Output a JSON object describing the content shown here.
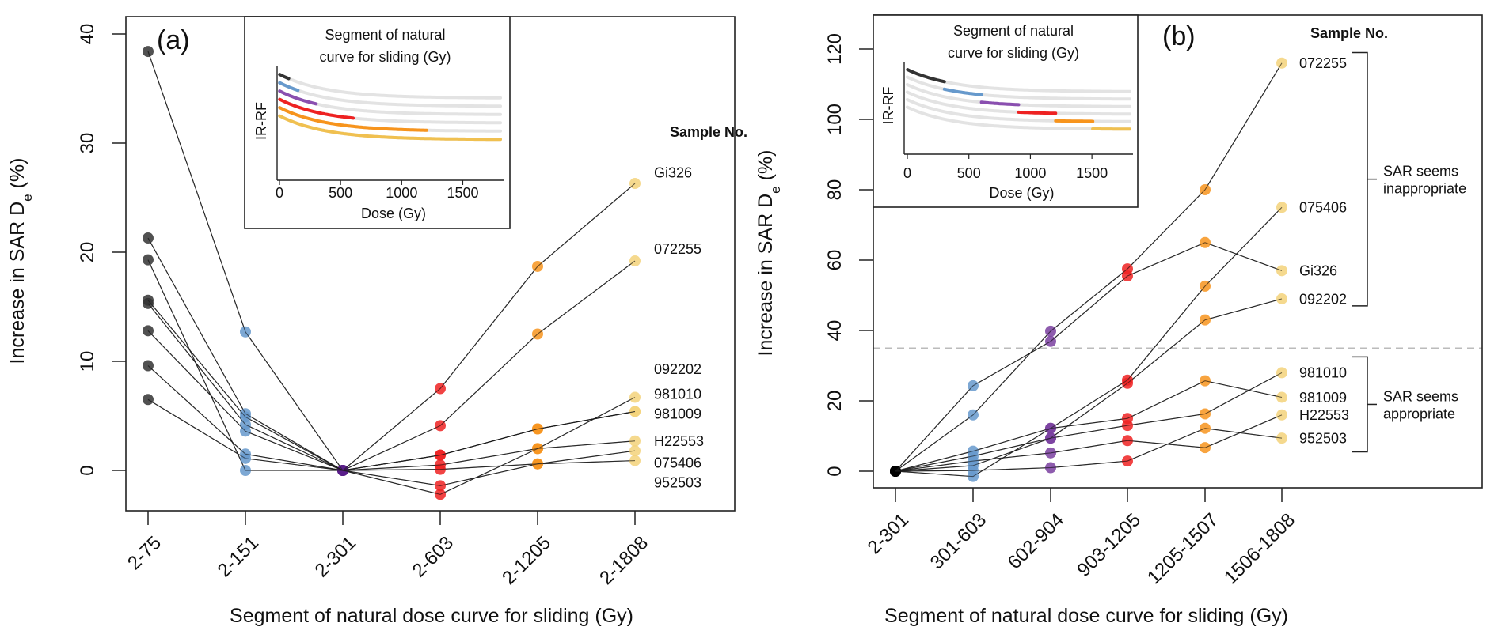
{
  "chart_data": [
    {
      "type": "line",
      "panel_label": "(a)",
      "xlabel": "Segment of natural dose curve for sliding (Gy)",
      "ylabel": "Increase in SAR D_e (%)",
      "ylabel_main": "Increase in SAR D",
      "ylabel_sub": "e",
      "ylabel_tail": " (%)",
      "categories": [
        "2-75",
        "2-151",
        "2-301",
        "2-603",
        "2-1205",
        "2-1808"
      ],
      "category_colors": [
        "#333333",
        "#6699cc",
        "#5b1f8a",
        "#ee2222",
        "#f7941d",
        "#f3d27a"
      ],
      "ylim": [
        -4,
        41
      ],
      "yticks": [
        0,
        10,
        20,
        30,
        40
      ],
      "grid": false,
      "legend_title": "Sample No.",
      "series": [
        {
          "name": "Gi326",
          "values": [
            21.3,
            5.2,
            0,
            7.5,
            18.7,
            26.3
          ]
        },
        {
          "name": "072255",
          "values": [
            38.4,
            12.7,
            0,
            4.1,
            12.5,
            19.2
          ]
        },
        {
          "name": "092202",
          "values": [
            15.6,
            4.9,
            0,
            1.4,
            3.8,
            5.4
          ]
        },
        {
          "name": "981010",
          "values": [
            19.3,
            0.0,
            0,
            -2.2,
            2.0,
            6.7
          ]
        },
        {
          "name": "981009",
          "values": [
            15.3,
            4.2,
            0,
            1.4,
            3.8,
            5.4
          ]
        },
        {
          "name": "H22553",
          "values": [
            12.8,
            3.6,
            0,
            0.5,
            2.0,
            2.7
          ]
        },
        {
          "name": "075406",
          "values": [
            9.6,
            1.5,
            0,
            -1.4,
            0.6,
            1.8
          ]
        },
        {
          "name": "952503",
          "values": [
            6.5,
            1.1,
            0,
            0.1,
            0.6,
            0.9
          ]
        }
      ],
      "labels": [
        {
          "text": "Gi326",
          "at": 27.3
        },
        {
          "text": "072255",
          "at": 20.3
        },
        {
          "text": "092202",
          "at": 9.3
        },
        {
          "text": "981010",
          "at": 7.0
        },
        {
          "text": "981009",
          "at": 5.2
        },
        {
          "text": "H22553",
          "at": 2.7
        },
        {
          "text": "075406",
          "at": 0.7
        },
        {
          "text": "952503",
          "at": -1.1
        }
      ],
      "inset": {
        "title_line1": "Segment of natural",
        "title_line2": "curve for sliding (Gy)",
        "ylabel": "IR-RF",
        "xlabel": "Dose (Gy)",
        "xticks": [
          0,
          500,
          1000,
          1500
        ],
        "xlim": [
          0,
          1808
        ],
        "segments": [
          {
            "from": 2,
            "to": 75,
            "color": "#333333"
          },
          {
            "from": 2,
            "to": 151,
            "color": "#6699cc"
          },
          {
            "from": 2,
            "to": 301,
            "color": "#8a4fb0"
          },
          {
            "from": 2,
            "to": 603,
            "color": "#ee2222"
          },
          {
            "from": 2,
            "to": 1205,
            "color": "#f7941d"
          },
          {
            "from": 2,
            "to": 1808,
            "color": "#f0c050"
          }
        ]
      }
    },
    {
      "type": "line",
      "panel_label": "(b)",
      "xlabel": "Segment of natural dose curve for sliding (Gy)",
      "ylabel": "Increase in SAR D_e (%)",
      "ylabel_main": "Increase in SAR D",
      "ylabel_sub": "e",
      "ylabel_tail": " (%)",
      "categories": [
        "2-301",
        "301-603",
        "602-904",
        "903-1205",
        "1205-1507",
        "1506-1808"
      ],
      "category_colors": [
        "#000000",
        "#6699cc",
        "#7a3fa0",
        "#ee2222",
        "#f7941d",
        "#f3d27a"
      ],
      "ylim": [
        -6,
        132
      ],
      "yticks": [
        0,
        20,
        40,
        60,
        80,
        100,
        120
      ],
      "grid": false,
      "threshold_line": 35,
      "legend_title": "Sample No.",
      "series": [
        {
          "name": "072255",
          "values": [
            0,
            16.0,
            39.8,
            57.5,
            80.0,
            116.0
          ]
        },
        {
          "name": "075406",
          "values": [
            0,
            -1.5,
            12.2,
            25.9,
            52.6,
            75.0
          ]
        },
        {
          "name": "Gi326",
          "values": [
            0,
            24.3,
            36.9,
            55.5,
            65.0,
            57.0
          ]
        },
        {
          "name": "092202",
          "values": [
            0,
            1.6,
            9.4,
            25.0,
            43.0,
            49.0
          ]
        },
        {
          "name": "981010",
          "values": [
            0,
            4.3,
            9.4,
            13.0,
            16.3,
            28.0
          ]
        },
        {
          "name": "981009",
          "values": [
            0,
            5.7,
            12.2,
            15.0,
            25.7,
            21.0
          ]
        },
        {
          "name": "H22553",
          "values": [
            0,
            2.9,
            5.2,
            8.7,
            6.7,
            16.0
          ]
        },
        {
          "name": "952503",
          "values": [
            0,
            0.2,
            1.0,
            2.9,
            12.2,
            9.4
          ]
        }
      ],
      "labels": [
        {
          "text": "072255",
          "at": 116.0
        },
        {
          "text": "075406",
          "at": 75.0
        },
        {
          "text": "Gi326",
          "at": 57.0
        },
        {
          "text": "092202",
          "at": 49.0
        },
        {
          "text": "981010",
          "at": 28.0
        },
        {
          "text": "981009",
          "at": 21.0
        },
        {
          "text": "H22553",
          "at": 16.0
        },
        {
          "text": "952503",
          "at": 9.4
        }
      ],
      "groups": [
        {
          "label_line1": "SAR seems",
          "label_line2": "inappropriate",
          "from": 47,
          "to": 119
        },
        {
          "label_line1": "SAR seems",
          "label_line2": "appropriate",
          "from": 5.5,
          "to": 32.5
        }
      ],
      "inset": {
        "title_line1": "Segment of natural",
        "title_line2": "curve for sliding (Gy)",
        "ylabel": "IR-RF",
        "xlabel": "Dose (Gy)",
        "xticks": [
          0,
          500,
          1000,
          1500
        ],
        "xlim": [
          0,
          1808
        ],
        "segments": [
          {
            "from": 2,
            "to": 301,
            "color": "#333333"
          },
          {
            "from": 301,
            "to": 603,
            "color": "#6699cc"
          },
          {
            "from": 602,
            "to": 904,
            "color": "#8a4fb0"
          },
          {
            "from": 903,
            "to": 1205,
            "color": "#ee2222"
          },
          {
            "from": 1205,
            "to": 1507,
            "color": "#f7941d"
          },
          {
            "from": 1506,
            "to": 1808,
            "color": "#f0c050"
          }
        ]
      }
    }
  ]
}
